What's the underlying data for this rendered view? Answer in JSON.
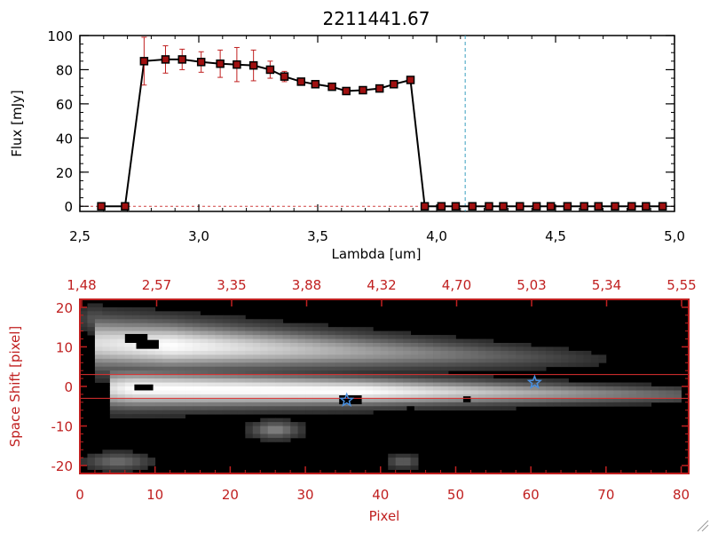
{
  "chart_data": [
    {
      "type": "line",
      "title": "2211441.67",
      "xlabel": "Lambda [um]",
      "ylabel": "Flux [mJy]",
      "xlim": [
        2.5,
        5.0
      ],
      "ylim": [
        -3,
        100
      ],
      "x_ticks": [
        "2.5",
        "3.0",
        "3.5",
        "4.0",
        "4.5",
        "5.0"
      ],
      "y_ticks": [
        "0",
        "20",
        "40",
        "60",
        "80",
        "100"
      ],
      "marker_color": "#a01010",
      "line_color": "#000000",
      "vline": {
        "x": 4.12,
        "color": "#3a9fbf"
      },
      "series": [
        {
          "x": [
            2.59,
            2.69,
            2.77,
            2.86,
            2.93,
            3.01,
            3.09,
            3.16,
            3.23,
            3.3,
            3.36,
            3.43,
            3.49,
            3.56,
            3.62,
            3.69,
            3.76,
            3.82,
            3.89,
            3.95,
            4.02,
            4.08,
            4.15,
            4.22,
            4.28,
            4.35,
            4.42,
            4.48,
            4.55,
            4.62,
            4.68,
            4.75,
            4.82,
            4.88,
            4.95
          ],
          "y": [
            0,
            0,
            85,
            86,
            86,
            84.5,
            83.5,
            83,
            82.5,
            80,
            76,
            73,
            71.5,
            70,
            67.5,
            68,
            69,
            71.5,
            74,
            0,
            0,
            0,
            0,
            0,
            0,
            0,
            0,
            0,
            0,
            0,
            0,
            0,
            0,
            0,
            0
          ],
          "yerr": [
            0,
            0,
            14,
            8,
            6,
            6,
            8,
            10,
            9,
            5,
            3,
            2,
            2,
            2,
            1.5,
            1.5,
            1.5,
            1.5,
            2,
            0,
            0,
            0,
            0,
            0,
            0,
            0,
            0,
            0,
            0,
            0,
            0,
            0,
            0,
            0,
            0
          ]
        }
      ]
    },
    {
      "type": "heatmap",
      "xlabel": "Pixel",
      "ylabel": "Space Shift [pixel]",
      "xlim": [
        0,
        81
      ],
      "ylim": [
        -22,
        22
      ],
      "x_ticks": [
        "0",
        "10",
        "20",
        "30",
        "40",
        "50",
        "60",
        "70",
        "80"
      ],
      "y_ticks": [
        "-20",
        "-10",
        "0",
        "10",
        "20"
      ],
      "top_ticks": [
        "1.48",
        "2.57",
        "3.35",
        "3.88",
        "4.32",
        "4.70",
        "5.03",
        "5.34",
        "5.55"
      ],
      "axis_color": "#c02020",
      "hlines": [
        3,
        -3
      ],
      "star_markers": [
        {
          "x": 60.5,
          "y": 1
        },
        {
          "x": 35.5,
          "y": -3.5
        }
      ],
      "star_color": "#4a90e0"
    }
  ]
}
